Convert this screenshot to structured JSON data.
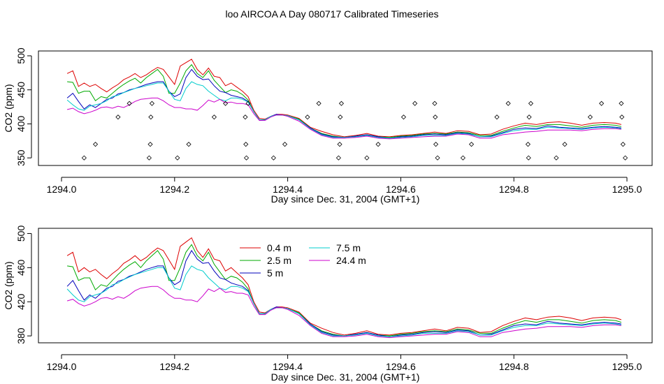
{
  "figure_title": "loo AIRCOA A  Day 080717  Calibrated Timeseries",
  "chart_data": [
    {
      "type": "line",
      "title": "loo AIRCOA A  Day 080717  Calibrated Timeseries",
      "xlabel": "Day since Dec. 31, 2004 (GMT+1)",
      "ylabel": "CO2 (ppm)",
      "xlim": [
        1294.0,
        1295.0
      ],
      "ylim": [
        344,
        502
      ],
      "x_ticks": [
        1294.0,
        1294.2,
        1294.4,
        1294.6,
        1294.8,
        1295.0
      ],
      "x_tick_labels": [
        "1294.0",
        "1294.2",
        "1294.4",
        "1294.6",
        "1294.8",
        "1295.0"
      ],
      "y_ticks": [
        350,
        400,
        450,
        500
      ],
      "y_tick_labels": [
        "350",
        "400",
        "450",
        "500"
      ],
      "grid": false,
      "legend": "none",
      "uses_series": true,
      "marker_series": {
        "marker": "diamond-open",
        "points": [
          [
            1294.04,
            350
          ],
          [
            1294.06,
            370
          ],
          [
            1294.1,
            410
          ],
          [
            1294.12,
            430
          ],
          [
            1294.155,
            350
          ],
          [
            1294.157,
            370
          ],
          [
            1294.158,
            410
          ],
          [
            1294.16,
            430
          ],
          [
            1294.205,
            350
          ],
          [
            1294.225,
            370
          ],
          [
            1294.27,
            410
          ],
          [
            1294.29,
            430
          ],
          [
            1294.325,
            410
          ],
          [
            1294.326,
            370
          ],
          [
            1294.327,
            350
          ],
          [
            1294.33,
            430
          ],
          [
            1294.375,
            350
          ],
          [
            1294.395,
            370
          ],
          [
            1294.435,
            410
          ],
          [
            1294.455,
            430
          ],
          [
            1294.49,
            350
          ],
          [
            1294.492,
            370
          ],
          [
            1294.493,
            410
          ],
          [
            1294.495,
            430
          ],
          [
            1294.54,
            350
          ],
          [
            1294.56,
            370
          ],
          [
            1294.605,
            410
          ],
          [
            1294.625,
            430
          ],
          [
            1294.66,
            430
          ],
          [
            1294.661,
            410
          ],
          [
            1294.662,
            370
          ],
          [
            1294.665,
            350
          ],
          [
            1294.71,
            350
          ],
          [
            1294.725,
            370
          ],
          [
            1294.77,
            410
          ],
          [
            1294.79,
            430
          ],
          [
            1294.825,
            370
          ],
          [
            1294.826,
            350
          ],
          [
            1294.827,
            410
          ],
          [
            1294.83,
            430
          ],
          [
            1294.875,
            350
          ],
          [
            1294.89,
            370
          ],
          [
            1294.935,
            410
          ],
          [
            1294.955,
            430
          ],
          [
            1294.99,
            430
          ],
          [
            1294.991,
            410
          ],
          [
            1294.993,
            370
          ],
          [
            1294.997,
            350
          ]
        ]
      }
    },
    {
      "type": "line",
      "title": "",
      "xlabel": "Day since Dec. 31, 2004 (GMT+1)",
      "ylabel": "CO2 (ppm)",
      "xlim": [
        1294.0,
        1295.0
      ],
      "ylim": [
        376,
        502
      ],
      "x_ticks": [
        1294.0,
        1294.2,
        1294.4,
        1294.6,
        1294.8,
        1295.0
      ],
      "x_tick_labels": [
        "1294.0",
        "1294.2",
        "1294.4",
        "1294.6",
        "1294.8",
        "1295.0"
      ],
      "y_ticks": [
        380,
        420,
        460,
        500
      ],
      "y_tick_labels": [
        "380",
        "420",
        "460",
        "500"
      ],
      "grid": false,
      "legend": "top-center",
      "uses_series": true
    }
  ],
  "series": [
    {
      "name": "0.4 m",
      "color": "#dd0000",
      "x": [
        1294.01,
        1294.02,
        1294.03,
        1294.04,
        1294.05,
        1294.06,
        1294.07,
        1294.08,
        1294.09,
        1294.1,
        1294.11,
        1294.12,
        1294.13,
        1294.14,
        1294.15,
        1294.16,
        1294.17,
        1294.18,
        1294.19,
        1294.2,
        1294.21,
        1294.22,
        1294.23,
        1294.24,
        1294.25,
        1294.26,
        1294.27,
        1294.28,
        1294.29,
        1294.3,
        1294.31,
        1294.32,
        1294.33,
        1294.34,
        1294.35,
        1294.36,
        1294.37,
        1294.38,
        1294.39,
        1294.4,
        1294.42,
        1294.44,
        1294.46,
        1294.48,
        1294.5,
        1294.52,
        1294.54,
        1294.56,
        1294.58,
        1294.6,
        1294.62,
        1294.64,
        1294.66,
        1294.68,
        1294.7,
        1294.72,
        1294.74,
        1294.76,
        1294.78,
        1294.8,
        1294.82,
        1294.84,
        1294.86,
        1294.88,
        1294.9,
        1294.92,
        1294.94,
        1294.96,
        1294.98,
        1294.99
      ],
      "y": [
        474,
        478,
        455,
        460,
        455,
        458,
        452,
        447,
        453,
        458,
        465,
        469,
        474,
        468,
        472,
        478,
        483,
        480,
        469,
        458,
        485,
        490,
        495,
        480,
        472,
        482,
        470,
        468,
        456,
        460,
        454,
        448,
        440,
        420,
        408,
        407,
        411,
        414,
        414,
        413,
        408,
        395,
        389,
        384,
        381,
        383,
        386,
        382,
        381,
        383,
        384,
        386,
        388,
        386,
        390,
        389,
        384,
        385,
        392,
        397,
        401,
        399,
        402,
        403,
        401,
        398,
        401,
        402,
        401,
        399
      ]
    },
    {
      "name": "2.5 m",
      "color": "#00aa00",
      "x": [
        1294.01,
        1294.02,
        1294.03,
        1294.04,
        1294.05,
        1294.06,
        1294.07,
        1294.08,
        1294.09,
        1294.1,
        1294.11,
        1294.12,
        1294.13,
        1294.14,
        1294.15,
        1294.16,
        1294.17,
        1294.18,
        1294.19,
        1294.2,
        1294.21,
        1294.22,
        1294.23,
        1294.24,
        1294.25,
        1294.26,
        1294.27,
        1294.28,
        1294.29,
        1294.3,
        1294.31,
        1294.32,
        1294.33,
        1294.34,
        1294.35,
        1294.36,
        1294.37,
        1294.38,
        1294.39,
        1294.4,
        1294.42,
        1294.44,
        1294.46,
        1294.48,
        1294.5,
        1294.52,
        1294.54,
        1294.56,
        1294.58,
        1294.6,
        1294.62,
        1294.64,
        1294.66,
        1294.68,
        1294.7,
        1294.72,
        1294.74,
        1294.76,
        1294.78,
        1294.8,
        1294.82,
        1294.84,
        1294.86,
        1294.88,
        1294.9,
        1294.92,
        1294.94,
        1294.96,
        1294.98,
        1294.99
      ],
      "y": [
        462,
        461,
        445,
        448,
        448,
        434,
        440,
        438,
        445,
        452,
        458,
        463,
        467,
        460,
        468,
        474,
        480,
        470,
        445,
        445,
        460,
        478,
        487,
        474,
        468,
        478,
        464,
        455,
        446,
        450,
        448,
        443,
        435,
        418,
        406,
        406,
        411,
        413,
        413,
        412,
        407,
        394,
        386,
        382,
        380,
        382,
        384,
        381,
        380,
        382,
        383,
        385,
        386,
        385,
        388,
        387,
        383,
        383,
        389,
        394,
        398,
        396,
        399,
        399,
        397,
        395,
        398,
        399,
        398,
        396
      ]
    },
    {
      "name": "5 m",
      "color": "#0000bb",
      "x": [
        1294.01,
        1294.02,
        1294.03,
        1294.04,
        1294.05,
        1294.06,
        1294.07,
        1294.08,
        1294.09,
        1294.1,
        1294.11,
        1294.12,
        1294.13,
        1294.14,
        1294.15,
        1294.16,
        1294.17,
        1294.18,
        1294.19,
        1294.2,
        1294.21,
        1294.22,
        1294.23,
        1294.24,
        1294.25,
        1294.26,
        1294.27,
        1294.28,
        1294.29,
        1294.3,
        1294.31,
        1294.32,
        1294.33,
        1294.34,
        1294.35,
        1294.36,
        1294.37,
        1294.38,
        1294.39,
        1294.4,
        1294.42,
        1294.44,
        1294.46,
        1294.48,
        1294.5,
        1294.52,
        1294.54,
        1294.56,
        1294.58,
        1294.6,
        1294.62,
        1294.64,
        1294.66,
        1294.68,
        1294.7,
        1294.72,
        1294.74,
        1294.76,
        1294.78,
        1294.8,
        1294.82,
        1294.84,
        1294.86,
        1294.88,
        1294.9,
        1294.92,
        1294.94,
        1294.96,
        1294.98,
        1294.99
      ],
      "y": [
        438,
        445,
        433,
        422,
        428,
        424,
        430,
        436,
        438,
        444,
        446,
        450,
        452,
        455,
        458,
        460,
        462,
        462,
        448,
        440,
        444,
        468,
        480,
        470,
        465,
        466,
        456,
        448,
        446,
        442,
        440,
        438,
        433,
        418,
        406,
        406,
        411,
        414,
        413,
        412,
        406,
        394,
        385,
        381,
        380,
        382,
        384,
        381,
        379,
        381,
        382,
        384,
        385,
        384,
        387,
        386,
        381,
        382,
        387,
        392,
        394,
        393,
        397,
        395,
        394,
        393,
        395,
        396,
        395,
        394
      ]
    },
    {
      "name": "7.5 m",
      "color": "#00cccc",
      "x": [
        1294.01,
        1294.02,
        1294.03,
        1294.04,
        1294.05,
        1294.06,
        1294.07,
        1294.08,
        1294.09,
        1294.1,
        1294.11,
        1294.12,
        1294.13,
        1294.14,
        1294.15,
        1294.16,
        1294.17,
        1294.18,
        1294.19,
        1294.2,
        1294.21,
        1294.22,
        1294.23,
        1294.24,
        1294.25,
        1294.26,
        1294.27,
        1294.28,
        1294.29,
        1294.3,
        1294.31,
        1294.32,
        1294.33,
        1294.34,
        1294.35,
        1294.36,
        1294.37,
        1294.38,
        1294.39,
        1294.4,
        1294.42,
        1294.44,
        1294.46,
        1294.48,
        1294.5,
        1294.52,
        1294.54,
        1294.56,
        1294.58,
        1294.6,
        1294.62,
        1294.64,
        1294.66,
        1294.68,
        1294.7,
        1294.72,
        1294.74,
        1294.76,
        1294.78,
        1294.8,
        1294.82,
        1294.84,
        1294.86,
        1294.88,
        1294.9,
        1294.92,
        1294.94,
        1294.96,
        1294.98,
        1294.99
      ],
      "y": [
        435,
        428,
        422,
        420,
        426,
        428,
        430,
        434,
        440,
        442,
        446,
        449,
        452,
        454,
        456,
        458,
        460,
        460,
        448,
        436,
        434,
        452,
        462,
        458,
        456,
        448,
        442,
        436,
        434,
        438,
        438,
        436,
        432,
        418,
        406,
        406,
        411,
        413,
        413,
        412,
        406,
        393,
        384,
        380,
        380,
        381,
        383,
        380,
        379,
        380,
        381,
        383,
        383,
        383,
        386,
        385,
        381,
        381,
        386,
        390,
        392,
        392,
        395,
        394,
        393,
        392,
        394,
        395,
        394,
        393
      ]
    },
    {
      "name": "24.4 m",
      "color": "#cc00cc",
      "x": [
        1294.01,
        1294.02,
        1294.03,
        1294.04,
        1294.05,
        1294.06,
        1294.07,
        1294.08,
        1294.09,
        1294.1,
        1294.11,
        1294.12,
        1294.13,
        1294.14,
        1294.15,
        1294.16,
        1294.17,
        1294.18,
        1294.19,
        1294.2,
        1294.21,
        1294.22,
        1294.23,
        1294.24,
        1294.25,
        1294.26,
        1294.27,
        1294.28,
        1294.29,
        1294.3,
        1294.31,
        1294.32,
        1294.33,
        1294.34,
        1294.35,
        1294.36,
        1294.37,
        1294.38,
        1294.39,
        1294.4,
        1294.42,
        1294.44,
        1294.46,
        1294.48,
        1294.5,
        1294.52,
        1294.54,
        1294.56,
        1294.58,
        1294.6,
        1294.62,
        1294.64,
        1294.66,
        1294.68,
        1294.7,
        1294.72,
        1294.74,
        1294.76,
        1294.78,
        1294.8,
        1294.82,
        1294.84,
        1294.86,
        1294.88,
        1294.9,
        1294.92,
        1294.94,
        1294.96,
        1294.98,
        1294.99
      ],
      "y": [
        421,
        423,
        418,
        415,
        417,
        420,
        424,
        425,
        423,
        426,
        424,
        428,
        433,
        436,
        437,
        438,
        438,
        434,
        428,
        424,
        424,
        422,
        422,
        420,
        427,
        435,
        432,
        436,
        431,
        432,
        430,
        430,
        428,
        415,
        405,
        405,
        410,
        413,
        413,
        411,
        404,
        392,
        383,
        379,
        379,
        380,
        382,
        379,
        378,
        379,
        380,
        381,
        382,
        382,
        385,
        384,
        379,
        379,
        384,
        386,
        388,
        389,
        391,
        391,
        391,
        390,
        392,
        393,
        393,
        392
      ]
    }
  ]
}
